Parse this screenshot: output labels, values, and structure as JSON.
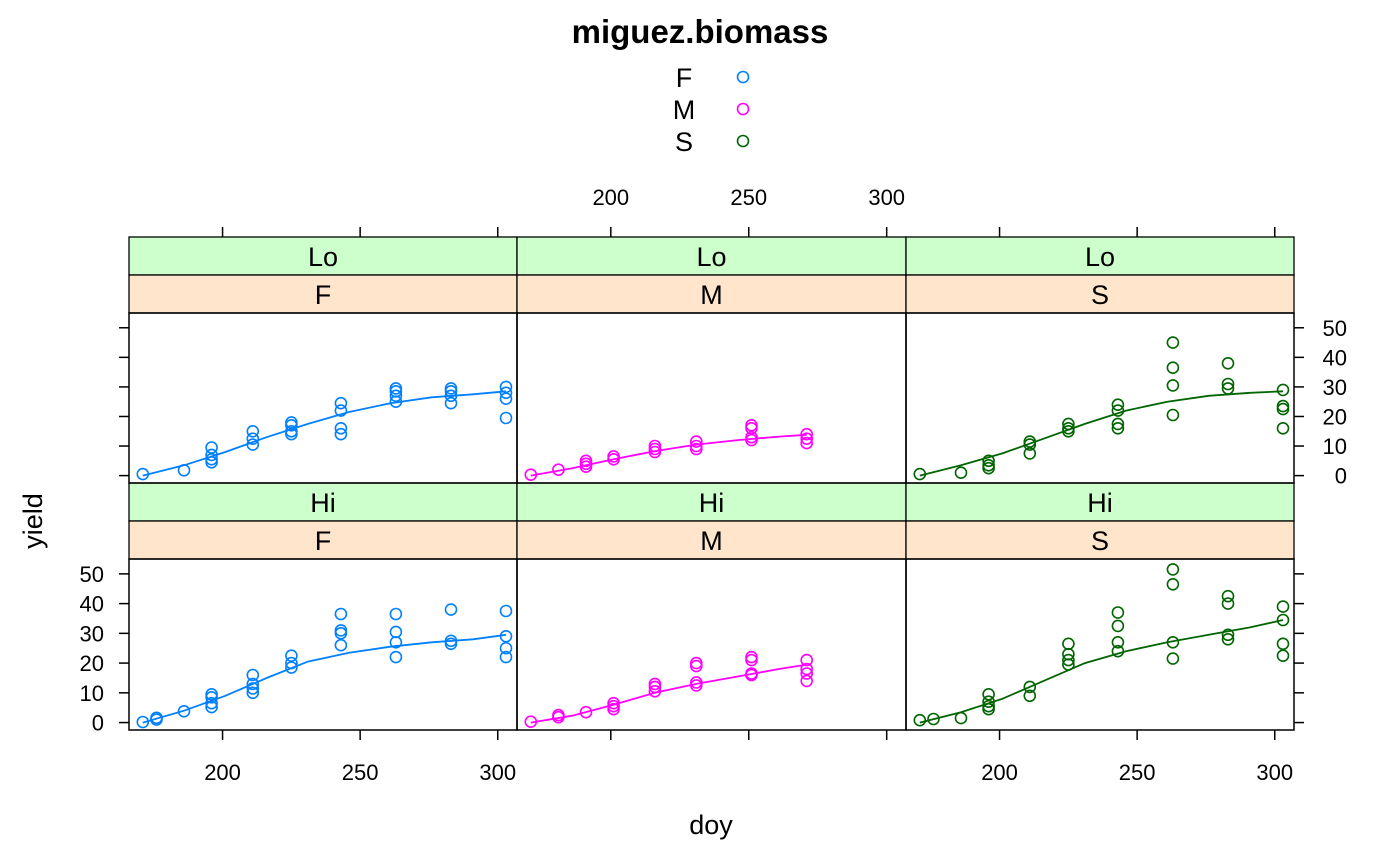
{
  "chart_data": {
    "type": "scatter",
    "title": "miguez.biomass",
    "xlabel": "doy",
    "ylabel": "yield",
    "xlim": [
      166,
      307
    ],
    "ylim": [
      -2.5,
      55
    ],
    "x_ticks": [
      200,
      250,
      300
    ],
    "y_ticks": [
      0,
      10,
      20,
      30,
      40,
      50
    ],
    "legend": {
      "position": "top",
      "entries": [
        {
          "label": "F",
          "color": "#0080ff"
        },
        {
          "label": "M",
          "color": "#ff00ff"
        },
        {
          "label": "S",
          "color": "#006400"
        }
      ]
    },
    "panels": [
      {
        "strip_top": "Hi",
        "strip_bottom": "F",
        "series": "F",
        "color": "#0080ff",
        "points": [
          [
            171,
            0.2
          ],
          [
            176,
            1
          ],
          [
            176,
            1.6
          ],
          [
            186,
            3.8
          ],
          [
            196,
            5.2
          ],
          [
            196,
            6.5
          ],
          [
            196,
            8.5
          ],
          [
            196,
            9.5
          ],
          [
            211,
            10
          ],
          [
            211,
            11.5
          ],
          [
            211,
            13
          ],
          [
            211,
            16
          ],
          [
            225,
            18.5
          ],
          [
            225,
            20
          ],
          [
            225,
            22.5
          ],
          [
            243,
            26
          ],
          [
            243,
            30
          ],
          [
            243,
            31
          ],
          [
            243,
            36.5
          ],
          [
            263,
            22
          ],
          [
            263,
            27
          ],
          [
            263,
            30.5
          ],
          [
            263,
            36.5
          ],
          [
            283,
            26.5
          ],
          [
            283,
            27.5
          ],
          [
            283,
            38
          ],
          [
            303,
            22
          ],
          [
            303,
            25
          ],
          [
            303,
            29
          ],
          [
            303,
            37.5
          ]
        ],
        "fit": [
          [
            171,
            0
          ],
          [
            186,
            4
          ],
          [
            201,
            9
          ],
          [
            216,
            15
          ],
          [
            231,
            20.5
          ],
          [
            246,
            23.5
          ],
          [
            261,
            25.5
          ],
          [
            276,
            27
          ],
          [
            291,
            28
          ],
          [
            303,
            29.5
          ]
        ]
      },
      {
        "strip_top": "Hi",
        "strip_bottom": "M",
        "series": "M",
        "color": "#ff00ff",
        "points": [
          [
            171,
            0.3
          ],
          [
            181,
            1.8
          ],
          [
            181,
            2.5
          ],
          [
            191,
            3.5
          ],
          [
            201,
            4.5
          ],
          [
            201,
            5.5
          ],
          [
            201,
            6.5
          ],
          [
            216,
            10.5
          ],
          [
            216,
            12
          ],
          [
            216,
            13
          ],
          [
            231,
            12.5
          ],
          [
            231,
            13.5
          ],
          [
            231,
            19
          ],
          [
            231,
            20
          ],
          [
            251,
            16
          ],
          [
            251,
            16.5
          ],
          [
            251,
            21
          ],
          [
            251,
            22
          ],
          [
            271,
            14
          ],
          [
            271,
            16.5
          ],
          [
            271,
            18
          ],
          [
            271,
            21
          ]
        ],
        "fit": [
          [
            171,
            0
          ],
          [
            186,
            2.3
          ],
          [
            201,
            6
          ],
          [
            216,
            10
          ],
          [
            231,
            13
          ],
          [
            246,
            15.5
          ],
          [
            261,
            18
          ],
          [
            271,
            19.5
          ]
        ]
      },
      {
        "strip_top": "Hi",
        "strip_bottom": "S",
        "series": "S",
        "color": "#006400",
        "points": [
          [
            171,
            0.8
          ],
          [
            176,
            1.2
          ],
          [
            186,
            1.5
          ],
          [
            196,
            4.5
          ],
          [
            196,
            5.5
          ],
          [
            196,
            7
          ],
          [
            196,
            9.5
          ],
          [
            211,
            9
          ],
          [
            211,
            12
          ],
          [
            225,
            19.5
          ],
          [
            225,
            21
          ],
          [
            225,
            23
          ],
          [
            225,
            26.5
          ],
          [
            243,
            24
          ],
          [
            243,
            27
          ],
          [
            243,
            32.5
          ],
          [
            243,
            37
          ],
          [
            263,
            21.5
          ],
          [
            263,
            27
          ],
          [
            263,
            46.5
          ],
          [
            263,
            51.5
          ],
          [
            283,
            28
          ],
          [
            283,
            29.5
          ],
          [
            283,
            40
          ],
          [
            283,
            42.5
          ],
          [
            303,
            22.5
          ],
          [
            303,
            26.5
          ],
          [
            303,
            34.5
          ],
          [
            303,
            39
          ]
        ],
        "fit": [
          [
            171,
            0
          ],
          [
            186,
            3.5
          ],
          [
            201,
            8
          ],
          [
            216,
            14
          ],
          [
            231,
            20
          ],
          [
            246,
            24
          ],
          [
            261,
            27
          ],
          [
            276,
            29.5
          ],
          [
            291,
            32
          ],
          [
            303,
            34.5
          ]
        ]
      },
      {
        "strip_top": "Lo",
        "strip_bottom": "F",
        "series": "F",
        "color": "#0080ff",
        "points": [
          [
            171,
            0.5
          ],
          [
            186,
            1.8
          ],
          [
            196,
            4.5
          ],
          [
            196,
            5.5
          ],
          [
            196,
            7
          ],
          [
            196,
            9.5
          ],
          [
            211,
            10.5
          ],
          [
            211,
            12.5
          ],
          [
            211,
            15
          ],
          [
            225,
            14
          ],
          [
            225,
            15
          ],
          [
            225,
            17
          ],
          [
            225,
            18
          ],
          [
            243,
            14
          ],
          [
            243,
            16
          ],
          [
            243,
            22
          ],
          [
            243,
            24.5
          ],
          [
            263,
            25
          ],
          [
            263,
            27
          ],
          [
            263,
            28.5
          ],
          [
            263,
            29.5
          ],
          [
            283,
            24.5
          ],
          [
            283,
            27
          ],
          [
            283,
            28.5
          ],
          [
            283,
            29.5
          ],
          [
            303,
            19.5
          ],
          [
            303,
            26
          ],
          [
            303,
            28
          ],
          [
            303,
            30
          ]
        ],
        "fit": [
          [
            171,
            0
          ],
          [
            186,
            3.5
          ],
          [
            201,
            8
          ],
          [
            216,
            13
          ],
          [
            231,
            17.5
          ],
          [
            246,
            21.5
          ],
          [
            261,
            24.5
          ],
          [
            276,
            26.5
          ],
          [
            291,
            27.5
          ],
          [
            303,
            28.5
          ]
        ]
      },
      {
        "strip_top": "Lo",
        "strip_bottom": "M",
        "series": "M",
        "color": "#ff00ff",
        "points": [
          [
            171,
            0.3
          ],
          [
            181,
            2
          ],
          [
            191,
            3
          ],
          [
            191,
            4
          ],
          [
            191,
            5
          ],
          [
            201,
            5.5
          ],
          [
            201,
            6.5
          ],
          [
            216,
            8
          ],
          [
            216,
            9
          ],
          [
            216,
            10
          ],
          [
            231,
            9
          ],
          [
            231,
            10
          ],
          [
            231,
            11.5
          ],
          [
            251,
            12
          ],
          [
            251,
            13
          ],
          [
            251,
            16
          ],
          [
            251,
            17
          ],
          [
            271,
            11
          ],
          [
            271,
            12.5
          ],
          [
            271,
            14
          ]
        ],
        "fit": [
          [
            171,
            0
          ],
          [
            186,
            2.5
          ],
          [
            201,
            5.5
          ],
          [
            216,
            8.3
          ],
          [
            231,
            10.5
          ],
          [
            246,
            12
          ],
          [
            261,
            13.2
          ],
          [
            271,
            13.8
          ]
        ]
      },
      {
        "strip_top": "Lo",
        "strip_bottom": "S",
        "series": "S",
        "color": "#006400",
        "points": [
          [
            171,
            0.5
          ],
          [
            186,
            1
          ],
          [
            196,
            2.5
          ],
          [
            196,
            3.5
          ],
          [
            196,
            5
          ],
          [
            211,
            7.5
          ],
          [
            211,
            10.5
          ],
          [
            211,
            11.5
          ],
          [
            225,
            15
          ],
          [
            225,
            16
          ],
          [
            225,
            17.5
          ],
          [
            243,
            16
          ],
          [
            243,
            17.5
          ],
          [
            243,
            22
          ],
          [
            243,
            24
          ],
          [
            263,
            20.5
          ],
          [
            263,
            30.5
          ],
          [
            263,
            36.5
          ],
          [
            263,
            45
          ],
          [
            283,
            29.5
          ],
          [
            283,
            31
          ],
          [
            283,
            38
          ],
          [
            303,
            16
          ],
          [
            303,
            22.5
          ],
          [
            303,
            23.5
          ],
          [
            303,
            29
          ]
        ],
        "fit": [
          [
            171,
            0
          ],
          [
            186,
            3.5
          ],
          [
            201,
            7.5
          ],
          [
            216,
            12.5
          ],
          [
            231,
            17.5
          ],
          [
            246,
            22
          ],
          [
            261,
            25
          ],
          [
            276,
            27
          ],
          [
            291,
            28
          ],
          [
            303,
            28.5
          ]
        ]
      }
    ]
  }
}
